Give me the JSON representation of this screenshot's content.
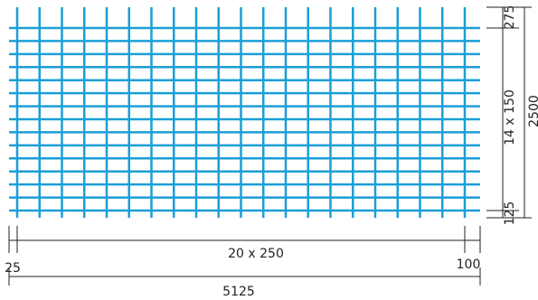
{
  "drawing": {
    "subject": "welded wire mesh sheet",
    "colors": {
      "mesh": "#1a9fd6",
      "dimension_line": "#222222",
      "background": "#ffffff"
    },
    "bars": {
      "vertical_count": 21,
      "horizontal_count": 15
    },
    "dimensions": {
      "left_overhang": "25",
      "bar_spacing_x": "20 x 250",
      "right_overhang": "100",
      "total_length": "5125",
      "top_overhang": "275",
      "bar_spacing_y": "14 x 150",
      "bottom_overhang": "125",
      "total_width": "2500"
    }
  }
}
